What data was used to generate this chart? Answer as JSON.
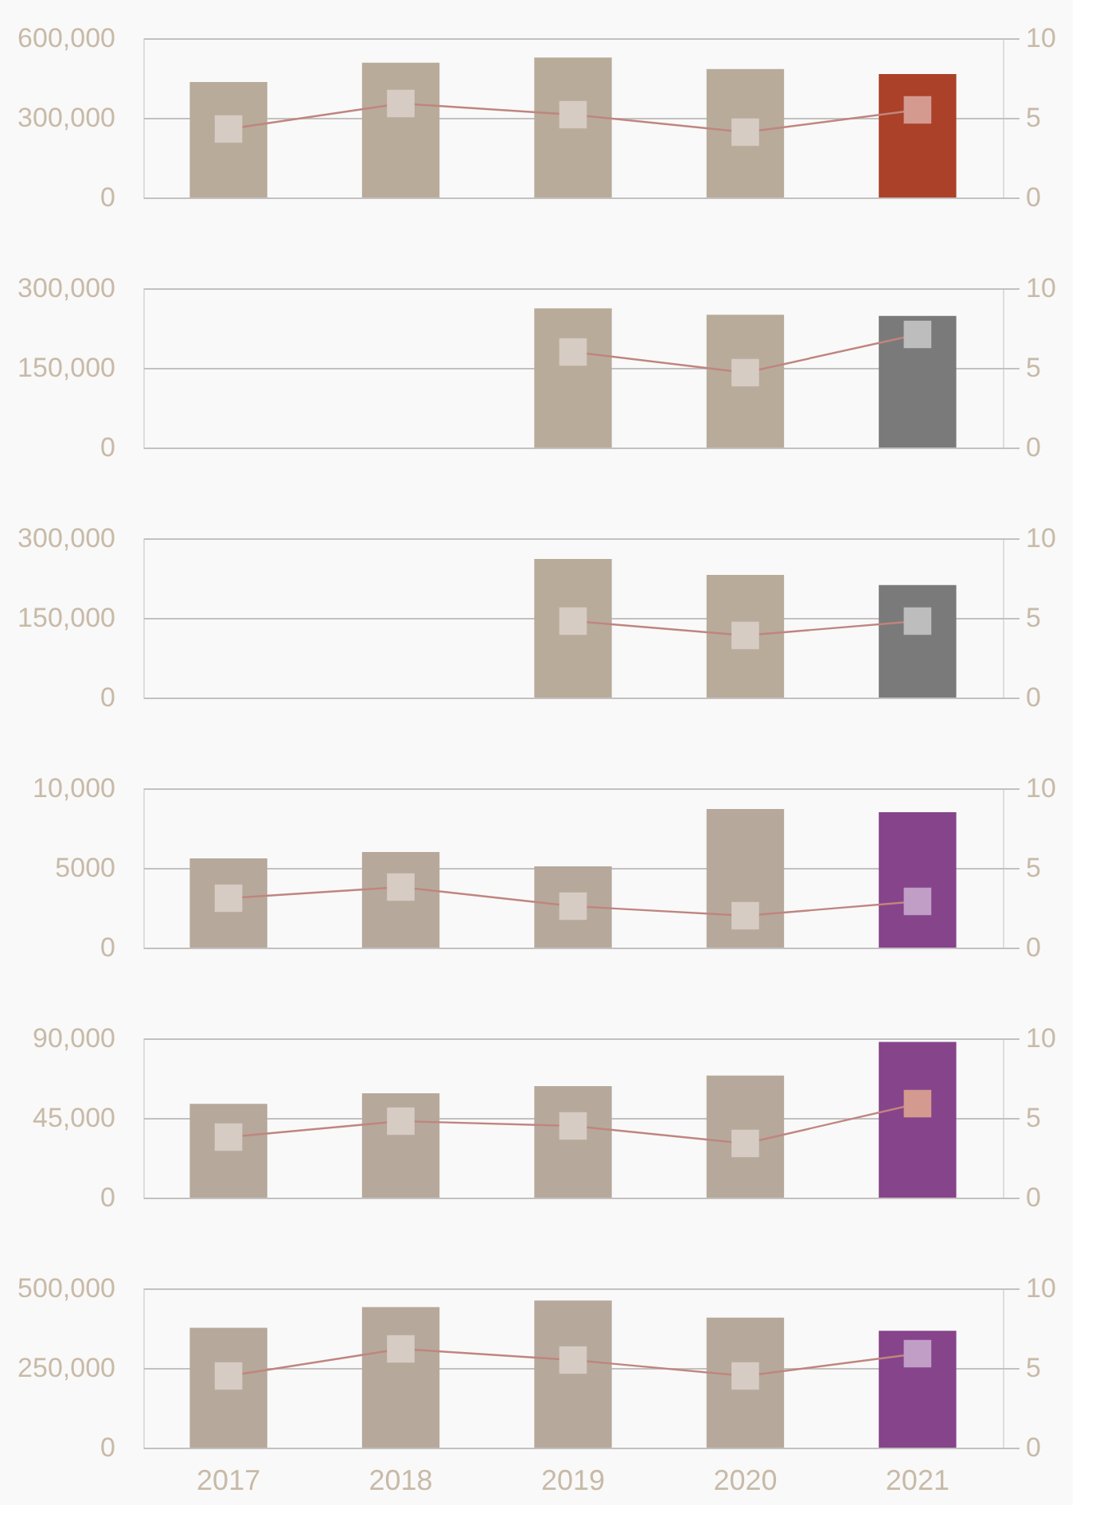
{
  "chart_data": [
    {
      "type": "bar",
      "categories": [
        "2017",
        "2018",
        "2019",
        "2020",
        "2021"
      ],
      "ylim": [
        0,
        600000
      ],
      "yticks": [
        0,
        {
          "value": 300000,
          "label": "300,000"
        },
        {
          "value": 600000,
          "label": "600,000"
        }
      ],
      "y2lim": [
        0,
        10
      ],
      "y2ticks": [
        0,
        5,
        10
      ],
      "grid": "y",
      "tick_labels": "y",
      "marker": "square",
      "series": [
        {
          "values": [
            435000,
            508000,
            527000,
            484000,
            465000
          ],
          "colors": [
            "#b8ab9a",
            "#b8ab9a",
            "#b8ab9a",
            "#b8ab9a",
            "#ab4129"
          ]
        },
        {
          "type": "line",
          "axis": "y2",
          "color": "#c0857f",
          "colors": [
            "#d6ccc4",
            "#d6ccc4",
            "#d6ccc4",
            "#d6ccc4",
            "#d49a90"
          ],
          "values": [
            4.3,
            5.9,
            5.2,
            4.1,
            5.5
          ]
        }
      ]
    },
    {
      "type": "bar",
      "categories": [
        "2017",
        "2018",
        "2019",
        "2020",
        "2021"
      ],
      "ylim": [
        0,
        300000
      ],
      "yticks": [
        0,
        {
          "value": 150000,
          "label": "150,000"
        },
        {
          "value": 300000,
          "label": "300,000"
        }
      ],
      "y2lim": [
        0,
        10
      ],
      "y2ticks": [
        0,
        5,
        10
      ],
      "grid": "y",
      "tick_labels": "y",
      "marker": "square",
      "series": [
        {
          "values": [
            null,
            null,
            262000,
            250000,
            248000
          ],
          "colors": [
            "#b8ab9a",
            "#b8ab9a",
            "#b8ab9a",
            "#b8ab9a",
            "#7a7a7a"
          ]
        },
        {
          "type": "line",
          "axis": "y2",
          "color": "#c0857f",
          "colors": [
            "#d6ccc4",
            "#d6ccc4",
            "#d6ccc4",
            "#d6ccc4",
            "#bdbdbd"
          ],
          "values": [
            null,
            null,
            6.0,
            4.7,
            7.1
          ]
        }
      ]
    },
    {
      "type": "bar",
      "categories": [
        "2017",
        "2018",
        "2019",
        "2020",
        "2021"
      ],
      "ylim": [
        0,
        300000
      ],
      "yticks": [
        0,
        {
          "value": 150000,
          "label": "150,000"
        },
        {
          "value": 300000,
          "label": "300,000"
        }
      ],
      "y2lim": [
        0,
        10
      ],
      "y2ticks": [
        0,
        5,
        10
      ],
      "grid": "y",
      "tick_labels": "y",
      "marker": "square",
      "series": [
        {
          "values": [
            null,
            null,
            261000,
            231000,
            212000
          ],
          "colors": [
            "#b8ab9a",
            "#b8ab9a",
            "#b8ab9a",
            "#b8ab9a",
            "#7a7a7a"
          ]
        },
        {
          "type": "line",
          "axis": "y2",
          "color": "#c0857f",
          "colors": [
            "#d6ccc4",
            "#d6ccc4",
            "#d6ccc4",
            "#d6ccc4",
            "#bdbdbd"
          ],
          "values": [
            null,
            null,
            4.8,
            3.9,
            4.8
          ]
        }
      ]
    },
    {
      "type": "bar",
      "categories": [
        "2017",
        "2018",
        "2019",
        "2020",
        "2021"
      ],
      "ylim": [
        0,
        10000
      ],
      "yticks": [
        0,
        5000,
        {
          "value": 10000,
          "label": "10,000"
        }
      ],
      "y2lim": [
        0,
        10
      ],
      "y2ticks": [
        0,
        5,
        10
      ],
      "grid": "y",
      "tick_labels": "y",
      "marker": "square",
      "series": [
        {
          "values": [
            5600,
            6000,
            5100,
            8700,
            8500
          ],
          "colors": [
            "#b6a99b",
            "#b6a99b",
            "#b6a99b",
            "#b6a99b",
            "#86448b"
          ]
        },
        {
          "type": "line",
          "axis": "y2",
          "color": "#c0857f",
          "colors": [
            "#d6ccc4",
            "#d6ccc4",
            "#d6ccc4",
            "#d6ccc4",
            "#c09ec6"
          ],
          "values": [
            3.1,
            3.8,
            2.6,
            2.0,
            2.9
          ]
        }
      ]
    },
    {
      "type": "bar",
      "categories": [
        "2017",
        "2018",
        "2019",
        "2020",
        "2021"
      ],
      "ylim": [
        0,
        90000
      ],
      "yticks": [
        0,
        {
          "value": 45000,
          "label": "45,000"
        },
        {
          "value": 90000,
          "label": "90,000"
        }
      ],
      "y2lim": [
        0,
        10
      ],
      "y2ticks": [
        0,
        5,
        10
      ],
      "grid": "y",
      "tick_labels": "y",
      "marker": "square",
      "series": [
        {
          "values": [
            53000,
            59000,
            63000,
            69000,
            88000
          ],
          "colors": [
            "#b6a99b",
            "#b6a99b",
            "#b6a99b",
            "#b6a99b",
            "#86448b"
          ]
        },
        {
          "type": "line",
          "axis": "y2",
          "color": "#c0857f",
          "colors": [
            "#d6ccc4",
            "#d6ccc4",
            "#d6ccc4",
            "#d6ccc4",
            "#d49a90"
          ],
          "values": [
            3.8,
            4.8,
            4.5,
            3.4,
            5.9
          ]
        }
      ]
    },
    {
      "type": "bar",
      "categories": [
        "2017",
        "2018",
        "2019",
        "2020",
        "2021"
      ],
      "ylim": [
        0,
        500000
      ],
      "yticks": [
        0,
        {
          "value": 250000,
          "label": "250,000"
        },
        {
          "value": 500000,
          "label": "500,000"
        }
      ],
      "y2lim": [
        0,
        10
      ],
      "y2ticks": [
        0,
        5,
        10
      ],
      "grid": "y",
      "marker": "square",
      "series": [
        {
          "values": [
            376000,
            441000,
            462000,
            408000,
            367000
          ],
          "colors": [
            "#b6a99b",
            "#b6a99b",
            "#b6a99b",
            "#b6a99b",
            "#86448b"
          ]
        },
        {
          "type": "line",
          "axis": "y2",
          "color": "#c0857f",
          "colors": [
            "#d6ccc4",
            "#d6ccc4",
            "#d6ccc4",
            "#d6ccc4",
            "#c09ec6"
          ],
          "values": [
            4.5,
            6.2,
            5.5,
            4.5,
            5.9
          ]
        }
      ]
    }
  ]
}
